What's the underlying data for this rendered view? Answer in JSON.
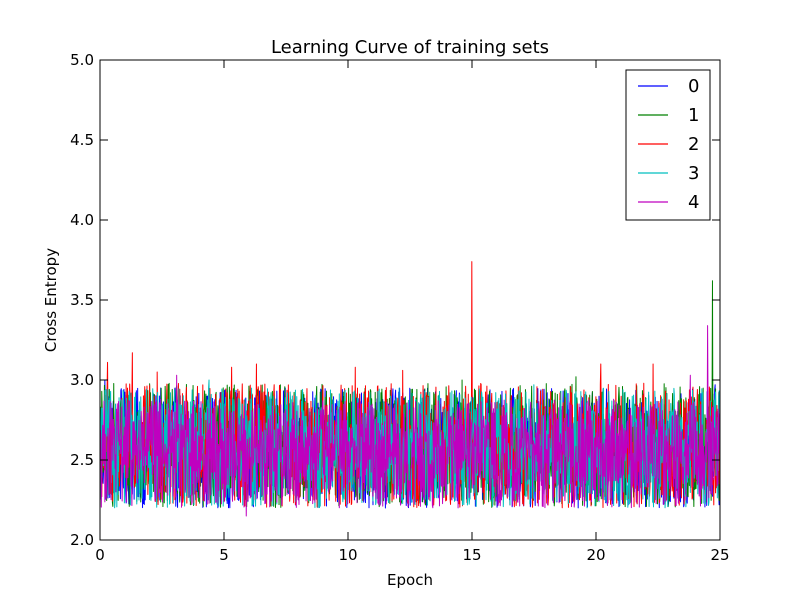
{
  "chart_data": {
    "type": "line",
    "title": "Learning Curve of training sets",
    "xlabel": "Epoch",
    "ylabel": "Cross Entropy",
    "xlim": [
      0,
      25
    ],
    "ylim": [
      2.0,
      5.0
    ],
    "xticks": [
      0,
      5,
      10,
      15,
      20,
      25
    ],
    "xtick_labels": [
      "0",
      "5",
      "10",
      "15",
      "20",
      "25"
    ],
    "yticks": [
      2.0,
      2.5,
      3.0,
      3.5,
      4.0,
      4.5,
      5.0
    ],
    "ytick_labels": [
      "2.0",
      "2.5",
      "3.0",
      "3.5",
      "4.0",
      "4.5",
      "5.0"
    ],
    "grid": false,
    "legend_position": "upper right",
    "series": [
      {
        "name": "0",
        "color": "#0000ff",
        "x": [
          0,
          2,
          4,
          6,
          8,
          10,
          12,
          14,
          16,
          18,
          20,
          22,
          24,
          25
        ],
        "y": [
          2.6,
          2.58,
          2.57,
          2.57,
          2.56,
          2.56,
          2.56,
          2.55,
          2.55,
          2.55,
          2.55,
          2.55,
          2.55,
          2.55
        ],
        "noise_range": [
          2.2,
          2.95
        ],
        "spikes": [
          [
            0.2,
            3.0
          ],
          [
            24.8,
            2.97
          ]
        ]
      },
      {
        "name": "1",
        "color": "#008000",
        "x": [
          0,
          2,
          4,
          6,
          8,
          10,
          12,
          14,
          16,
          18,
          20,
          22,
          24,
          25
        ],
        "y": [
          2.6,
          2.58,
          2.57,
          2.57,
          2.56,
          2.56,
          2.56,
          2.55,
          2.55,
          2.55,
          2.55,
          2.55,
          2.55,
          2.55
        ],
        "noise_range": [
          2.2,
          2.98
        ],
        "spikes": [
          [
            24.7,
            3.62
          ],
          [
            19.2,
            3.02
          ],
          [
            14.6,
            3.0
          ]
        ]
      },
      {
        "name": "2",
        "color": "#ff0000",
        "x": [
          0,
          2,
          4,
          6,
          8,
          10,
          12,
          14,
          16,
          18,
          20,
          22,
          24,
          25
        ],
        "y": [
          2.6,
          2.58,
          2.57,
          2.57,
          2.56,
          2.56,
          2.56,
          2.55,
          2.55,
          2.55,
          2.55,
          2.55,
          2.55,
          2.55
        ],
        "noise_range": [
          2.2,
          2.98
        ],
        "spikes": [
          [
            15.0,
            3.74
          ],
          [
            0.3,
            3.11
          ],
          [
            1.3,
            3.17
          ],
          [
            6.3,
            3.1
          ],
          [
            5.3,
            3.08
          ],
          [
            10.3,
            3.08
          ],
          [
            12.2,
            3.06
          ],
          [
            20.2,
            3.1
          ],
          [
            22.3,
            3.1
          ],
          [
            2.3,
            3.05
          ]
        ]
      },
      {
        "name": "3",
        "color": "#00bfbf",
        "x": [
          0,
          2,
          4,
          6,
          8,
          10,
          12,
          14,
          16,
          18,
          20,
          22,
          24,
          25
        ],
        "y": [
          2.6,
          2.58,
          2.57,
          2.57,
          2.56,
          2.56,
          2.56,
          2.55,
          2.55,
          2.55,
          2.55,
          2.55,
          2.55,
          2.55
        ],
        "noise_range": [
          2.2,
          2.95
        ],
        "spikes": [
          [
            4.4,
            3.0
          ],
          [
            17.5,
            2.97
          ]
        ]
      },
      {
        "name": "4",
        "color": "#bf00bf",
        "x": [
          0,
          2,
          4,
          6,
          8,
          10,
          12,
          14,
          16,
          18,
          20,
          22,
          24,
          25
        ],
        "y": [
          2.6,
          2.58,
          2.57,
          2.57,
          2.56,
          2.56,
          2.56,
          2.55,
          2.55,
          2.55,
          2.55,
          2.55,
          2.55,
          2.55
        ],
        "noise_range": [
          2.2,
          2.88
        ],
        "spikes": [
          [
            24.5,
            3.34
          ],
          [
            5.9,
            2.15
          ],
          [
            3.1,
            3.03
          ],
          [
            23.8,
            3.03
          ]
        ]
      }
    ]
  }
}
